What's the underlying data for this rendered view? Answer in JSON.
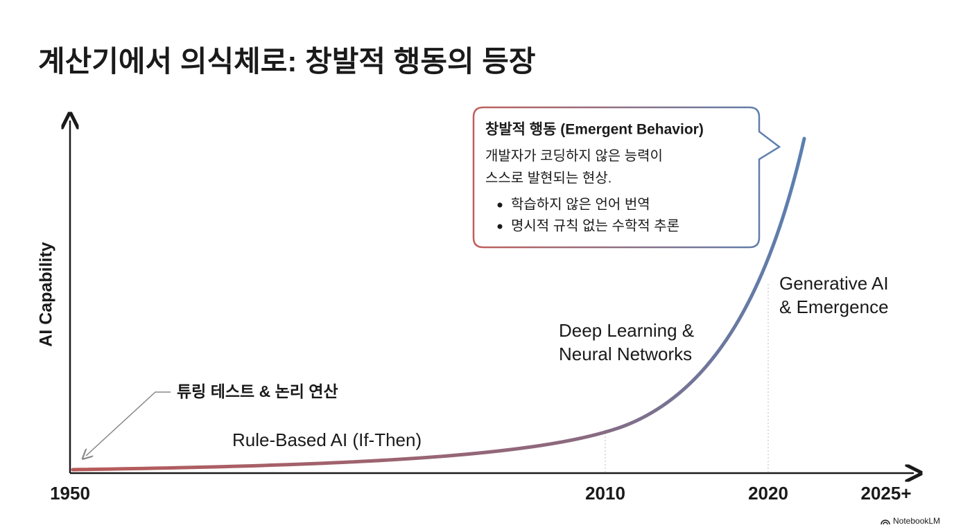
{
  "title": "계산기에서 의식체로: 창발적 행동의 등장",
  "axes": {
    "y_label": "AI Capability",
    "x_labels": [
      "1950",
      "2010",
      "2020",
      "2025+"
    ]
  },
  "annotations": {
    "origin_note": "튜링 테스트 & 논리 연산",
    "stages": [
      [
        "Rule-Based AI (If-Then)"
      ],
      [
        "Deep Learning &",
        "Neural Networks"
      ],
      [
        "Generative AI",
        "& Emergence"
      ]
    ]
  },
  "callout": {
    "heading": "창발적 행동 (Emergent Behavior)",
    "body": [
      "개발자가 코딩하지 않은 능력이",
      "스스로 발현되는 현상."
    ],
    "bullets": [
      "학습하지 않은 언어 번역",
      "명시적 규칙 없는 수학적 추론"
    ]
  },
  "watermark": "NotebookLM"
}
